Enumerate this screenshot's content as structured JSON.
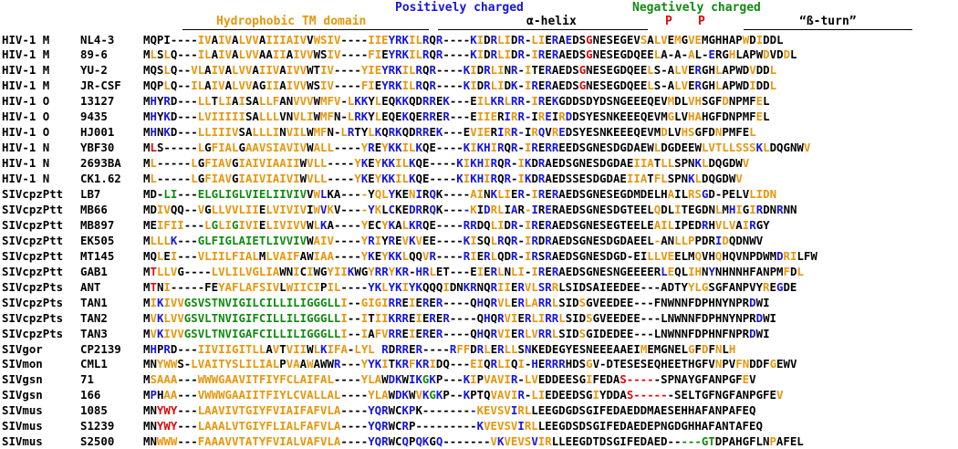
{
  "headers": {
    "hydrophobic_tm": "Hydrophobic TM domain",
    "positively_charged": "Positively charged",
    "alpha_helix": "α-helix",
    "negatively_charged": "Negatively charged",
    "p1": "P",
    "p2": "P",
    "beta_turn": "“ß-turn”"
  },
  "colors": {
    "O": "#E8960C",
    "B": "#1515DD",
    "R": "#DD0A0A",
    "G": "#108A10",
    "K": "#000000"
  },
  "rows": [
    {
      "group": "HIV-1 M",
      "strain": "NL4-3",
      "sequence": "MQPI----IVAIVALVVAIIIAIVVWSIV----IIEYRKILRQR----KIDRLIDR-LIERAEDSGNESEGEVSALVEMGVEMGHHAPWDIDDL",
      "colors": "KKKKKKKKOOKOOKOOOKOOOOOOKOOOOKKKKOOOBBBOOBKBKKKKBOKBOOKBKOOKBKBKKRKKKKKKKOKOOKOKOOKKKKKKOKO"
    },
    {
      "group": "HIV-1 M",
      "strain": "89-6",
      "sequence": "MLSLQ---ILAIVALVVAAIIAIVVWSIV----FIEYRKILRQR----KIDRLIDR-IRERAEDSGNESEGDQEELA-A-AL-ERGHLAPWDVDDL",
      "colors": "KOKOKKKKOOKOOKOOOKKOOKOOOKKOOKKKKOOKBBBOOBKBKKKKBOKBOOKBKOBKBKKKKRKKKKKKKKKOKKKKOKKBKKOKKKKOKKO"
    },
    {
      "group": "HIV-1 M",
      "strain": "YU-2",
      "sequence": "MQSLQ--VLAIVALVVAIIVAIVVWTIV----YIEYRKILRQR----KIDRLINR-ITERAEDSGNESEGDQEELS-ALVERGHLAPWDVDDL",
      "colors": "KKKOKKKOOKOOKOOOKOOOKOOOKKOOKKKKOOOBBBOOBKBKKKKBOKBOOKBKOKKBKKKKRKKKKKKKKKOKKKOOKBKKOKKKKOKKO"
    },
    {
      "group": "HIV-1 M",
      "strain": "JR-CSF",
      "sequence": "MQPLQ--ILAIVALVVAGIIAIVVWSIV----FIEYRKILRQR----KIDRLIDK-IRERAEDSGNESEGDQEELS-ALVERGHLAPWDIDDL",
      "colors": "KKKOKKKOOKOOKOOOKKOOKOOOKKOOKKKKOOKBBBOOBKBKKKKBOKBOOKBKOBKBKKKKRKKKKKKKKKOKKKOOKBKKOKKKKOKKO"
    },
    {
      "group": "HIV-1 O",
      "strain": "13127",
      "sequence": "MHYRD---LLTLIAISALLFANVVVWMFV-LKKYLEQKKQDRREK---EILKRLRR-IREKGDDSDYDSNGEEEQEVMDLVHSGFDNPMFEL",
      "colors": "KBKBKKKKOOKOOKOKKOOOKKOOOKOOOKOBBKOKKBBKKBBKBKKKKOOBBOBBKOBKBKKKKKKKKKKKKKKKKOKKOOKKKOKKKKOKO"
    },
    {
      "group": "HIV-1 O",
      "strain": "9435",
      "sequence": "MHYKD---LVIIIIISALLLVNVLIWMFN-LRKYLEQEKQERRER---EIIERIRR-IREIRDDSYESNKEEEQEVMGLVHAHGFDNPMFEL",
      "colors": "KBKBKKKKOOOOOOOKKOOOKKOOOKOOKKOBBKOKKKBKKBBKBKKKKOOOKBOBBKOBKOBKKKKKKKKKKKKKKOKKOOKKKKKKKKOKO"
    },
    {
      "group": "HIV-1 O",
      "strain": "HJ001",
      "sequence": "MHNKD---LLIIIVSALLLINVILWMFN-LRTYLKQRKQDRREK---EVIERIRR-IRQVREDSYESNKEEEQEVMDLVHSGFDNPMFEL",
      "colors": "KBKBKKKKOOOOOOKKOOOOKOOOKOOKKOBKKOBKBBKKBBKBKKKKOOOKBOBBKOBKOBKKKKKKKKKKKKKKOKKOOKKKOKKKKOKO"
    },
    {
      "group": "HIV-1 N",
      "strain": "YBF30",
      "sequence": "MLS-----LGFIALGAAVSIAVIVWALL----YREYKKILKQE----KIKHIRQR-IRERREEDSGNESDGDAEWLDGDEEWLVTLLSSSKLDQGNWV",
      "colors": "KRKKKKKKOKOOOOKOOOOOOOOOKOOOKKKKOBKOBBOOBKKKKKKBOBBOBKBKOBKBBKKKKKKKKKKKKKKOKKKKKKOOOOOOOOBOKKKKKO"
    },
    {
      "group": "HIV-1 N",
      "strain": "2693BA",
      "sequence": "ML-----LGFIAVGIAIVIAAIIWVLL----YKEYKKILKQE----KIKHIRQR-IKDRAEDSGNESDGDAEIIATLLSPNKLDQGDWV",
      "colors": "KOKKKKKOKOOOOKOOOOOOOOOKOOOKKKKOBKOBBOOBKKKKKKBOBBOBKBKOBKBKKKKKKKKKKKKKOOOKOOKKKBOKKKKKO"
    },
    {
      "group": "HIV-1 N",
      "strain": "CK1.62",
      "sequence": "ML-----LGFIAVGIAIVIAIVIWVLL----YKEYKKILKQE----KIKHIRQR-IKDRAEDSSESDGDAEIIATFLSPNKLDQGDWV",
      "colors": "KOKKKKKOKOOOOKOOOOOOOOOKOOOKKKKOBKOBBOOBKKKKKKBOBBOBKBKOBKBKKKKKKKKKKKKOOOKOOKKKBOKKKKKO"
    },
    {
      "group": "SIVcpzPtt",
      "strain": "LB7",
      "sequence": "MD-LI---ELGLIGLVIELIIVIVVWLKA----YQLYKENIRQK----AINKLIER-IRERAEDSGNESEGDMDELHAILRSGD-PELVLIDN",
      "colors": "KKKGGKKKGGGGGGGGGGGGGGGGKOBKKKKKOKOOBKKOBKBKKKKKOOKBOOKBKOBKBKKKKKKKKKKKKKKKKOKKOOBKKKKKKOOOOKK"
    },
    {
      "group": "SIVcpzPtt",
      "strain": "MB66",
      "sequence": "MDIVQQ--VGLLVVLIIELVIVIVIWVKV----YKLCKEDRRQK----KIDRLIAR-IRERAEDSGNESDGTEELQDLITEGDNLMHIGIRDNRNN",
      "colors": "KKOOKKKKOKOOOOOOOKOOOOOOKOBOKKKKOBOKBKKBBKBKKKKBOKBOOKBKOBKBKKKKKKKKKKKKKKKOKKOKKKKKOKBOKOBKKBKK"
    },
    {
      "group": "SIVcpzPtt",
      "strain": "MB897",
      "sequence": "MEIFII---LGLIGIVIELIVIVVWLKA----YECYKALKRQE----RRDQLIDR-IRERAEDSGNESEGTEELEAILIPEDRHVLVAIRGY",
      "colors": "KKOOOOKKKOGOOGOOOKOOOOOOKOBKKKKKOKKOBKOBBKKKKKKBBKKOOKBKOBKBKKKKKKKKKKKKKKKOOOKKKKBKOOOKOBKK"
    },
    {
      "group": "SIVcpzPtt",
      "strain": "EK505",
      "sequence": "MLLLK---GLFIGLAIETLIVVIVWAIV----YRIYREVKVEE----KISQLRQR-IRDRAEDSGNESDGDAEEL-ANLLPPDRIDQDNWV",
      "colors": "KOOOBKKKGGGGGGGGGGGGGGGGKOOOKKKKOBOKBKOBOKKKKKKBOKKOBKBKOBKBKKKKKKKKKKKKKKKOKKOOOKKKBOKKKKKO"
    },
    {
      "group": "SIVcpzPtt",
      "strain": "MT145",
      "sequence": "MQLEI---VLIILFIALMLVAIFAWIAA----YKEYKKLQQVR----RIERLQDR-IRSRAEDSGNESDGD-EILLVEELMQVHQHQVNPDWMDRILFW",
      "colors": "KKOKOKKKOOOOOOOOOKOOOOOKKOOOKKKKOBKOBBOKKOBKKKKBOKBOKKBKOBKBKKKKKKKKKKKKKKOOOOKKKOKKOKKKKKKKKBOOKK"
    },
    {
      "group": "SIVcpzPtt",
      "strain": "GAB1",
      "sequence": "MTLLVG----LVLILVGLIAWNICIWGYIIKWGYRRYKR-HRLET---EIERLNLI-IRERAEDSGNESNGEEEERLEQLIHNYNHNNHFANPMFDL",
      "colors": "KROOOKKKKKOOOOOOOOOOKKOKOKKOOOBKKOBBOBBKBBOKKKKKKOKBOKOOKOBKBKKKKKKKKKKKKKKKBOKKOOKBKKKKKKKKKKOKO"
    },
    {
      "group": "SIVcpzPts",
      "strain": "ANT",
      "sequence": "MTNI-----FEYAFLAFSIVLWIICIPIL----YKLYKIYKQQQIDNKRNQRIIERVLSRRLSIDSAIEEDEE---ADTYYLGSGFANPVYREGDE",
      "colors": "KRKOKKKKKKKOOOOOOOOOKOOOOOKOOKKKKBBOBBOBBKKKOKKBBKKBOOKBOOBBOKKKKKKKKKKKKKKKKKKKOOOKKKKKKKKOKBKKKK"
    },
    {
      "group": "SIVcpzPts",
      "strain": "TAN1",
      "sequence": "MIKIVVGSVSTNVIGILCILLILIGGGLLI--GIGIRREIERER----QHQRVLERLARRLSIDSGVEEDEE---FNWNNFDPHNYNPRDWI",
      "colors": "KOBOOOGGGGGGGGGGGGGGGGGGGGGGGOKKOOOOBBKOKBKBKKKKKBKBOOKBOOBBOKKKOKKKKKKKKKKKKKKKKKKKKKKKKBKKO"
    },
    {
      "group": "SIVcpzPts",
      "strain": "TAN2",
      "sequence": "MVKLVVGSVLTNVIGIFCILLILIGGGLLI--ITIIKRREIERER----QHQRVIERLIRRLSIDSGVEEDEE---LNWNNFDPHNYNPRDWI",
      "colors": "KOBOOOGGGGGGGGGGGGGGGGGGGGGGGOKKOKOOBBBKOKBKBKKKKKBKBOOKBOOBBOKKKOKKKKKKKKKKKKKKKKKKKKKKKKBKKO"
    },
    {
      "group": "SIVcpzPts",
      "strain": "TAN3",
      "sequence": "MVKIVVGSVLTNVIGAFCILLILIGGGLLI--IAFVRREIERER----QHQRVIERLVRRLSIDSGIDEDEE---LNWNNFDPHNFNPRDWI",
      "colors": "KOBOOOGGGGGGGGGGGGGGGGGGGGGGGOKKOKOOBBKOKBKBKKKKKBKBOOKBOOBBOKKKOKKKKKKKKKKKKKKKKKKKKKKKKBKKO"
    },
    {
      "group": "SIVgor",
      "strain": "CP2139",
      "sequence": "MHPRD---IIVIIGITLLAVTVIIWLKIFA-LYL RDRRER----RFFDRLERLLSNKEDEGYESNEEEAAEIMEMGNELGFDFNLH",
      "colors": "KBKBKKKKOOOOOOOOOOKOKOOOKOBOOOKOOOKBKBBKBKKKKBOOKBOKBOOKBKKKKKKKKKKKKKKKKOKKKKKKOKOKOKOK"
    },
    {
      "group": "SIVmon",
      "strain": "CML1",
      "sequence": "MNYWWS-LVAITYSLILIALPVAAWAWWR---YYKITKRFKRIDQ---EIQRLIQI-HERRRHDSGV-DTESESEQHEETHGFVNPVFNDDFGEWV",
      "colors": "KKOOOKKOOOOOOOOOOOOOKOOKOKKKBKKKOBBOKBBOBBOKKKKKOOKBOOKOKBKBBBKKKOKKKKKKKKKKKKKKKKKKOKKOOKKKOKKKO"
    },
    {
      "group": "SIVgsn",
      "strain": "71",
      "sequence": "MSAAA---WWWGAAVITFIYFCLAIFAL----YLAWDKWIKGKP---KIPVAVIR-LVEDDEESGIFEDAS-----SPNAYGFANPGFEV",
      "colors": "KOOOOKKKOOOOOOOOOOOOOOOOOOOOKKKKOOOKBBKBBGBKKKKBOKOOOOBKOOKKKKKKKOKKKKRRRRRKKKKKKKKKKKKKO"
    },
    {
      "group": "SIVgsn",
      "strain": "166",
      "sequence": "MPHAA---VWWWGAAIITFIYLCVALLAL----YLAWDKWVKGKP--KPTQVAVIR-LIEDEEDSGIYDDAS------SELTGFNGFANPGFEV",
      "colors": "KBKOOKKKOOOOOOOOOOOOOOOOOOOOOKKKKOOOKBBKOBGBKKKBKKKOOOOBKOOKKKKKKKOKKKKRRRRRRKKKKKKKKKKKKKKKKO"
    },
    {
      "group": "SIVmus",
      "strain": "1085",
      "sequence": "MNYWY---LAAVIVTGIYFVIAIFAFVLA----YQRWCKPK--------KEVSVIRLLEEGDGDSGIFEDAEDDMAESEHHAFANPAFEQ",
      "colors": "KKRRRKKKOOOOOOOOOOOOOOOOOOOOOKKKKBBBKKBBKKKKKKKKBOOOOOBOOKKKKKKKKKKKKKKKKKKKKKKKKKKKKKKKK"
    },
    {
      "group": "SIVmus",
      "strain": "S1239",
      "sequence": "MNYWY---LAAALVTGIYFLIALFAFVLA----YQRWCRP---------KVEVSVIRLLEEGDSDSGIFEDAEDEPNGDGHHAFANTAFEQ",
      "colors": "KKRRRKKKOOOOOOOOOOOOOOOOOOOOOKKKKBBBKKBKKKKKKKKKKBOOOOOBOOKKKKKKKKKKKKKKKKKKKKKKKKKKKKKKKKK"
    },
    {
      "group": "SIVmus",
      "strain": "S2500",
      "sequence": "MNWWW---FAAAVVTATYFVIALVAFVLA----YQRWCQPQKGQ-------VKVEVSVIRLLEEGDTDSGIFEDAED-----GTDPAHGFLNPAFEL",
      "colors": "KKOOOKKKOOOOOOOOOOOOOOOOOOOOOKKKKBBBKKBKBBKBKKKKKKKOBOOOOBOOKKKKKKKKKKKKKKKKKKKGGGGGKKKKKKKKOKKKKO"
    }
  ]
}
